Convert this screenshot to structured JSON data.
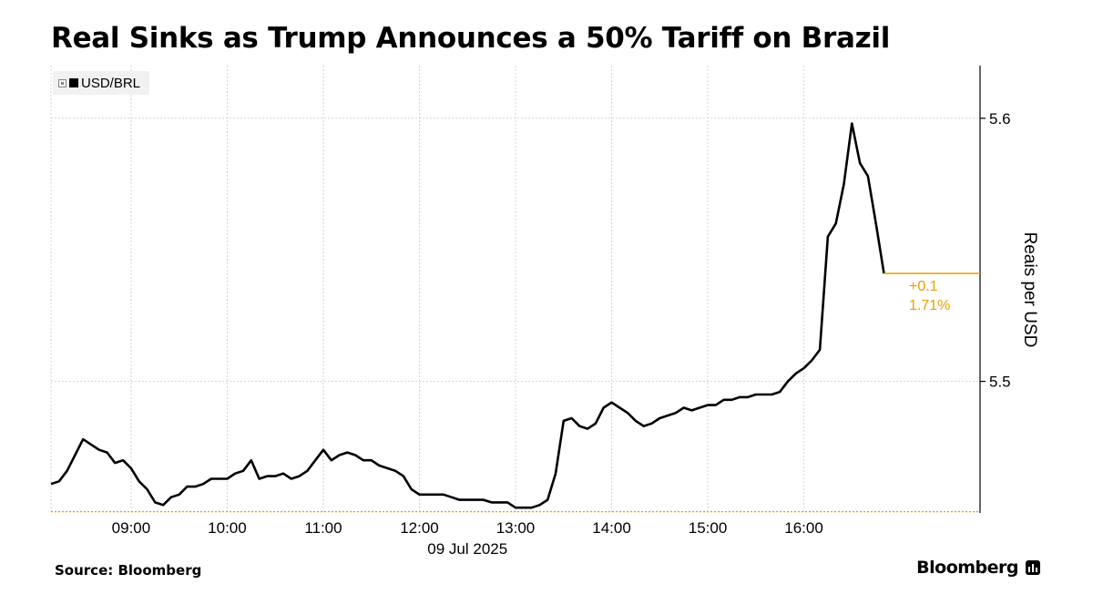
{
  "title": "Real Sinks as Trump Announces a 50% Tariff on Brazil",
  "legend": {
    "label": "USD/BRL"
  },
  "source": "Source: Bloomberg",
  "brand": "Bloomberg",
  "annotation": {
    "change": "+0.1",
    "percent": "1.71%"
  },
  "colors": {
    "line": "#000000",
    "accent": "#e5a000",
    "grid": "#d4d4d4"
  },
  "chart_data": {
    "type": "line",
    "title": "Real Sinks as Trump Announces a 50% Tariff on Brazil",
    "ylabel": "Reais per USD",
    "xlabel": "09 Jul 2025",
    "x_range": [
      "08:10",
      "17:50"
    ],
    "ylim": [
      5.45,
      5.62
    ],
    "yticks": [
      5.5,
      5.6
    ],
    "ytick_labels": [
      "5.5",
      "5.6"
    ],
    "xtick_labels": [
      "09:00",
      "10:00",
      "11:00",
      "12:00",
      "13:00",
      "14:00",
      "15:00",
      "16:00"
    ],
    "date_label": "09 Jul 2025",
    "grid": true,
    "legend_position": "top-left",
    "reference_line": 5.4505,
    "last_value": 5.541,
    "series": [
      {
        "name": "USD/BRL",
        "x": [
          "08:10",
          "08:15",
          "08:20",
          "08:25",
          "08:30",
          "08:35",
          "08:40",
          "08:45",
          "08:50",
          "08:55",
          "09:00",
          "09:05",
          "09:10",
          "09:15",
          "09:20",
          "09:25",
          "09:30",
          "09:35",
          "09:40",
          "09:45",
          "09:50",
          "09:55",
          "10:00",
          "10:05",
          "10:10",
          "10:15",
          "10:20",
          "10:25",
          "10:30",
          "10:35",
          "10:40",
          "10:45",
          "10:50",
          "10:55",
          "11:00",
          "11:05",
          "11:10",
          "11:15",
          "11:20",
          "11:25",
          "11:30",
          "11:35",
          "11:40",
          "11:45",
          "11:50",
          "11:55",
          "12:00",
          "12:05",
          "12:10",
          "12:15",
          "12:20",
          "12:25",
          "12:30",
          "12:35",
          "12:40",
          "12:45",
          "12:50",
          "12:55",
          "13:00",
          "13:05",
          "13:10",
          "13:15",
          "13:20",
          "13:25",
          "13:30",
          "13:35",
          "13:40",
          "13:45",
          "13:50",
          "13:55",
          "14:00",
          "14:05",
          "14:10",
          "14:15",
          "14:20",
          "14:25",
          "14:30",
          "14:35",
          "14:40",
          "14:45",
          "14:50",
          "14:55",
          "15:00",
          "15:05",
          "15:10",
          "15:15",
          "15:20",
          "15:25",
          "15:30",
          "15:35",
          "15:40",
          "15:45",
          "15:50",
          "15:55",
          "16:00",
          "16:05",
          "16:10",
          "16:15",
          "16:20",
          "16:25",
          "16:30",
          "16:35",
          "16:40",
          "16:45",
          "16:50"
        ],
        "values": [
          5.461,
          5.462,
          5.466,
          5.472,
          5.478,
          5.476,
          5.474,
          5.473,
          5.469,
          5.47,
          5.467,
          5.462,
          5.459,
          5.454,
          5.453,
          5.456,
          5.457,
          5.46,
          5.46,
          5.461,
          5.463,
          5.463,
          5.463,
          5.465,
          5.466,
          5.47,
          5.463,
          5.464,
          5.464,
          5.465,
          5.463,
          5.464,
          5.466,
          5.47,
          5.474,
          5.47,
          5.472,
          5.473,
          5.472,
          5.47,
          5.47,
          5.468,
          5.467,
          5.466,
          5.464,
          5.459,
          5.457,
          5.457,
          5.457,
          5.457,
          5.456,
          5.455,
          5.455,
          5.455,
          5.455,
          5.454,
          5.454,
          5.454,
          5.452,
          5.452,
          5.452,
          5.453,
          5.455,
          5.465,
          5.485,
          5.486,
          5.483,
          5.482,
          5.484,
          5.49,
          5.492,
          5.49,
          5.488,
          5.485,
          5.483,
          5.484,
          5.486,
          5.487,
          5.488,
          5.49,
          5.489,
          5.49,
          5.491,
          5.491,
          5.493,
          5.493,
          5.494,
          5.494,
          5.495,
          5.495,
          5.495,
          5.496,
          5.5,
          5.503,
          5.505,
          5.508,
          5.512,
          5.555,
          5.56,
          5.575,
          5.598,
          5.583,
          5.578,
          5.56,
          5.541
        ]
      }
    ]
  }
}
